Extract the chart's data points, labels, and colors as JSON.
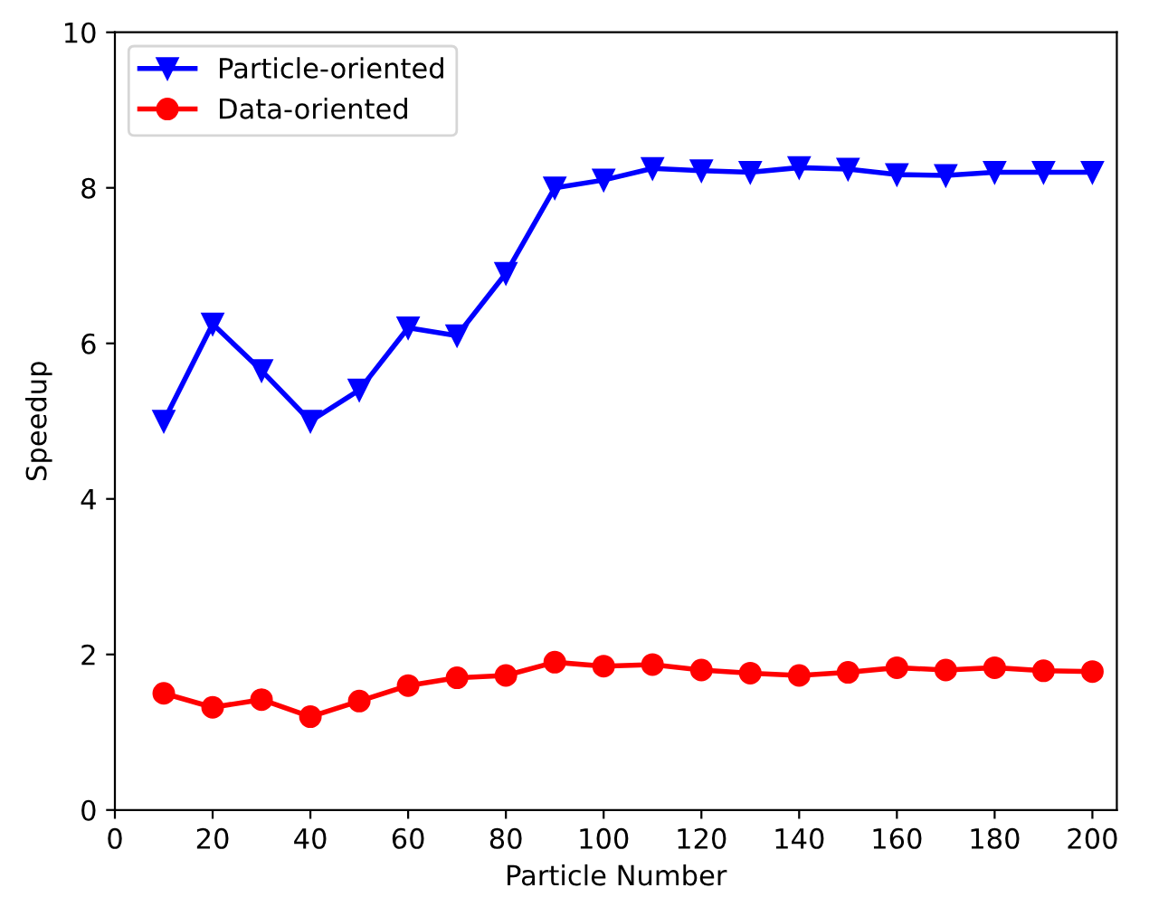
{
  "chart_data": {
    "type": "line",
    "xlabel": "Particle Number",
    "ylabel": "Speedup",
    "x": [
      10,
      20,
      30,
      40,
      50,
      60,
      70,
      80,
      90,
      100,
      110,
      120,
      130,
      140,
      150,
      160,
      170,
      180,
      190,
      200
    ],
    "series": [
      {
        "name": "Particle-oriented",
        "color": "#0000ff",
        "marker": "triangle",
        "values": [
          5.0,
          6.25,
          5.65,
          5.0,
          5.4,
          6.2,
          6.1,
          6.9,
          8.0,
          8.1,
          8.25,
          8.22,
          8.2,
          8.26,
          8.24,
          8.17,
          8.16,
          8.2,
          8.2,
          8.2
        ]
      },
      {
        "name": "Data-oriented",
        "color": "#ff0000",
        "marker": "circle",
        "values": [
          1.5,
          1.32,
          1.42,
          1.2,
          1.4,
          1.6,
          1.7,
          1.73,
          1.9,
          1.85,
          1.87,
          1.8,
          1.76,
          1.73,
          1.77,
          1.83,
          1.8,
          1.83,
          1.79,
          1.78
        ]
      }
    ],
    "xlim": [
      0,
      205
    ],
    "xticks": [
      0,
      20,
      40,
      60,
      80,
      100,
      120,
      140,
      160,
      180,
      200
    ],
    "ylim": [
      0,
      10
    ],
    "yticks": [
      0,
      2,
      4,
      6,
      8,
      10
    ],
    "grid": false,
    "legend": "top left"
  }
}
